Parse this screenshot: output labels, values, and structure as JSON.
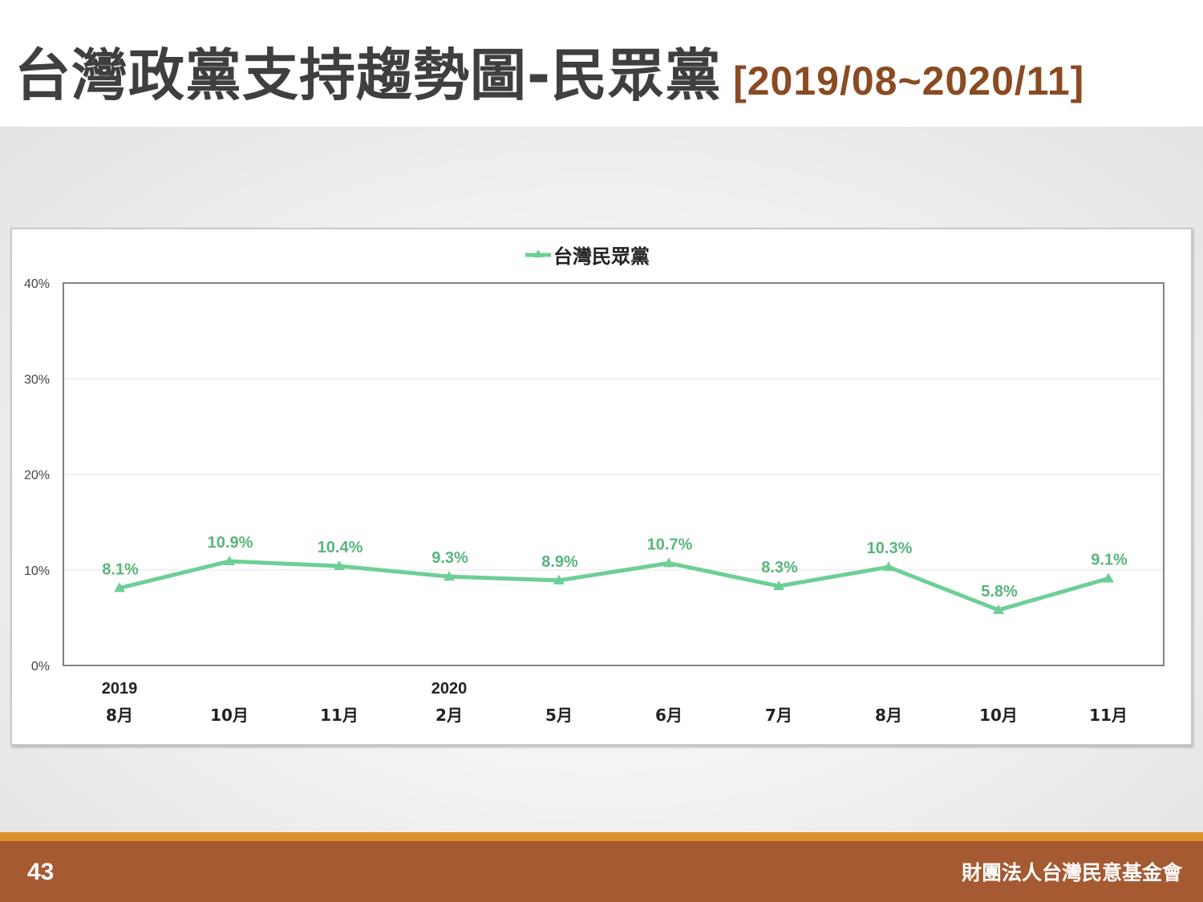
{
  "header": {
    "title": "台灣政黨支持趨勢圖-民眾黨",
    "date_range": "[2019/08~2020/11]"
  },
  "footer": {
    "page_number": "43",
    "organization": "財團法人台灣民意基金會"
  },
  "colors": {
    "series": "#6dcf96",
    "label": "#59b57d",
    "footer_bg": "#a65a32",
    "footer_stripe": "#d9922a",
    "title": "#3f3f3f",
    "date_range": "#8a4a22"
  },
  "chart_data": {
    "type": "line",
    "legend": "top-center",
    "grid": true,
    "ylim": [
      0,
      40
    ],
    "y_ticks": [
      "0%",
      "10%",
      "20%",
      "30%",
      "40%"
    ],
    "y_tick_values": [
      0,
      10,
      20,
      30,
      40
    ],
    "year_labels": [
      "2019",
      "",
      "",
      "2020",
      "",
      "",
      "",
      "",
      "",
      ""
    ],
    "categories": [
      "8月",
      "10月",
      "11月",
      "2月",
      "5月",
      "6月",
      "7月",
      "8月",
      "10月",
      "11月"
    ],
    "series": [
      {
        "name": "台灣民眾黨",
        "values": [
          8.1,
          10.9,
          10.4,
          9.3,
          8.9,
          10.7,
          8.3,
          10.3,
          5.8,
          9.1
        ],
        "labels": [
          "8.1%",
          "10.9%",
          "10.4%",
          "9.3%",
          "8.9%",
          "10.7%",
          "8.3%",
          "10.3%",
          "5.8%",
          "9.1%"
        ]
      }
    ]
  }
}
